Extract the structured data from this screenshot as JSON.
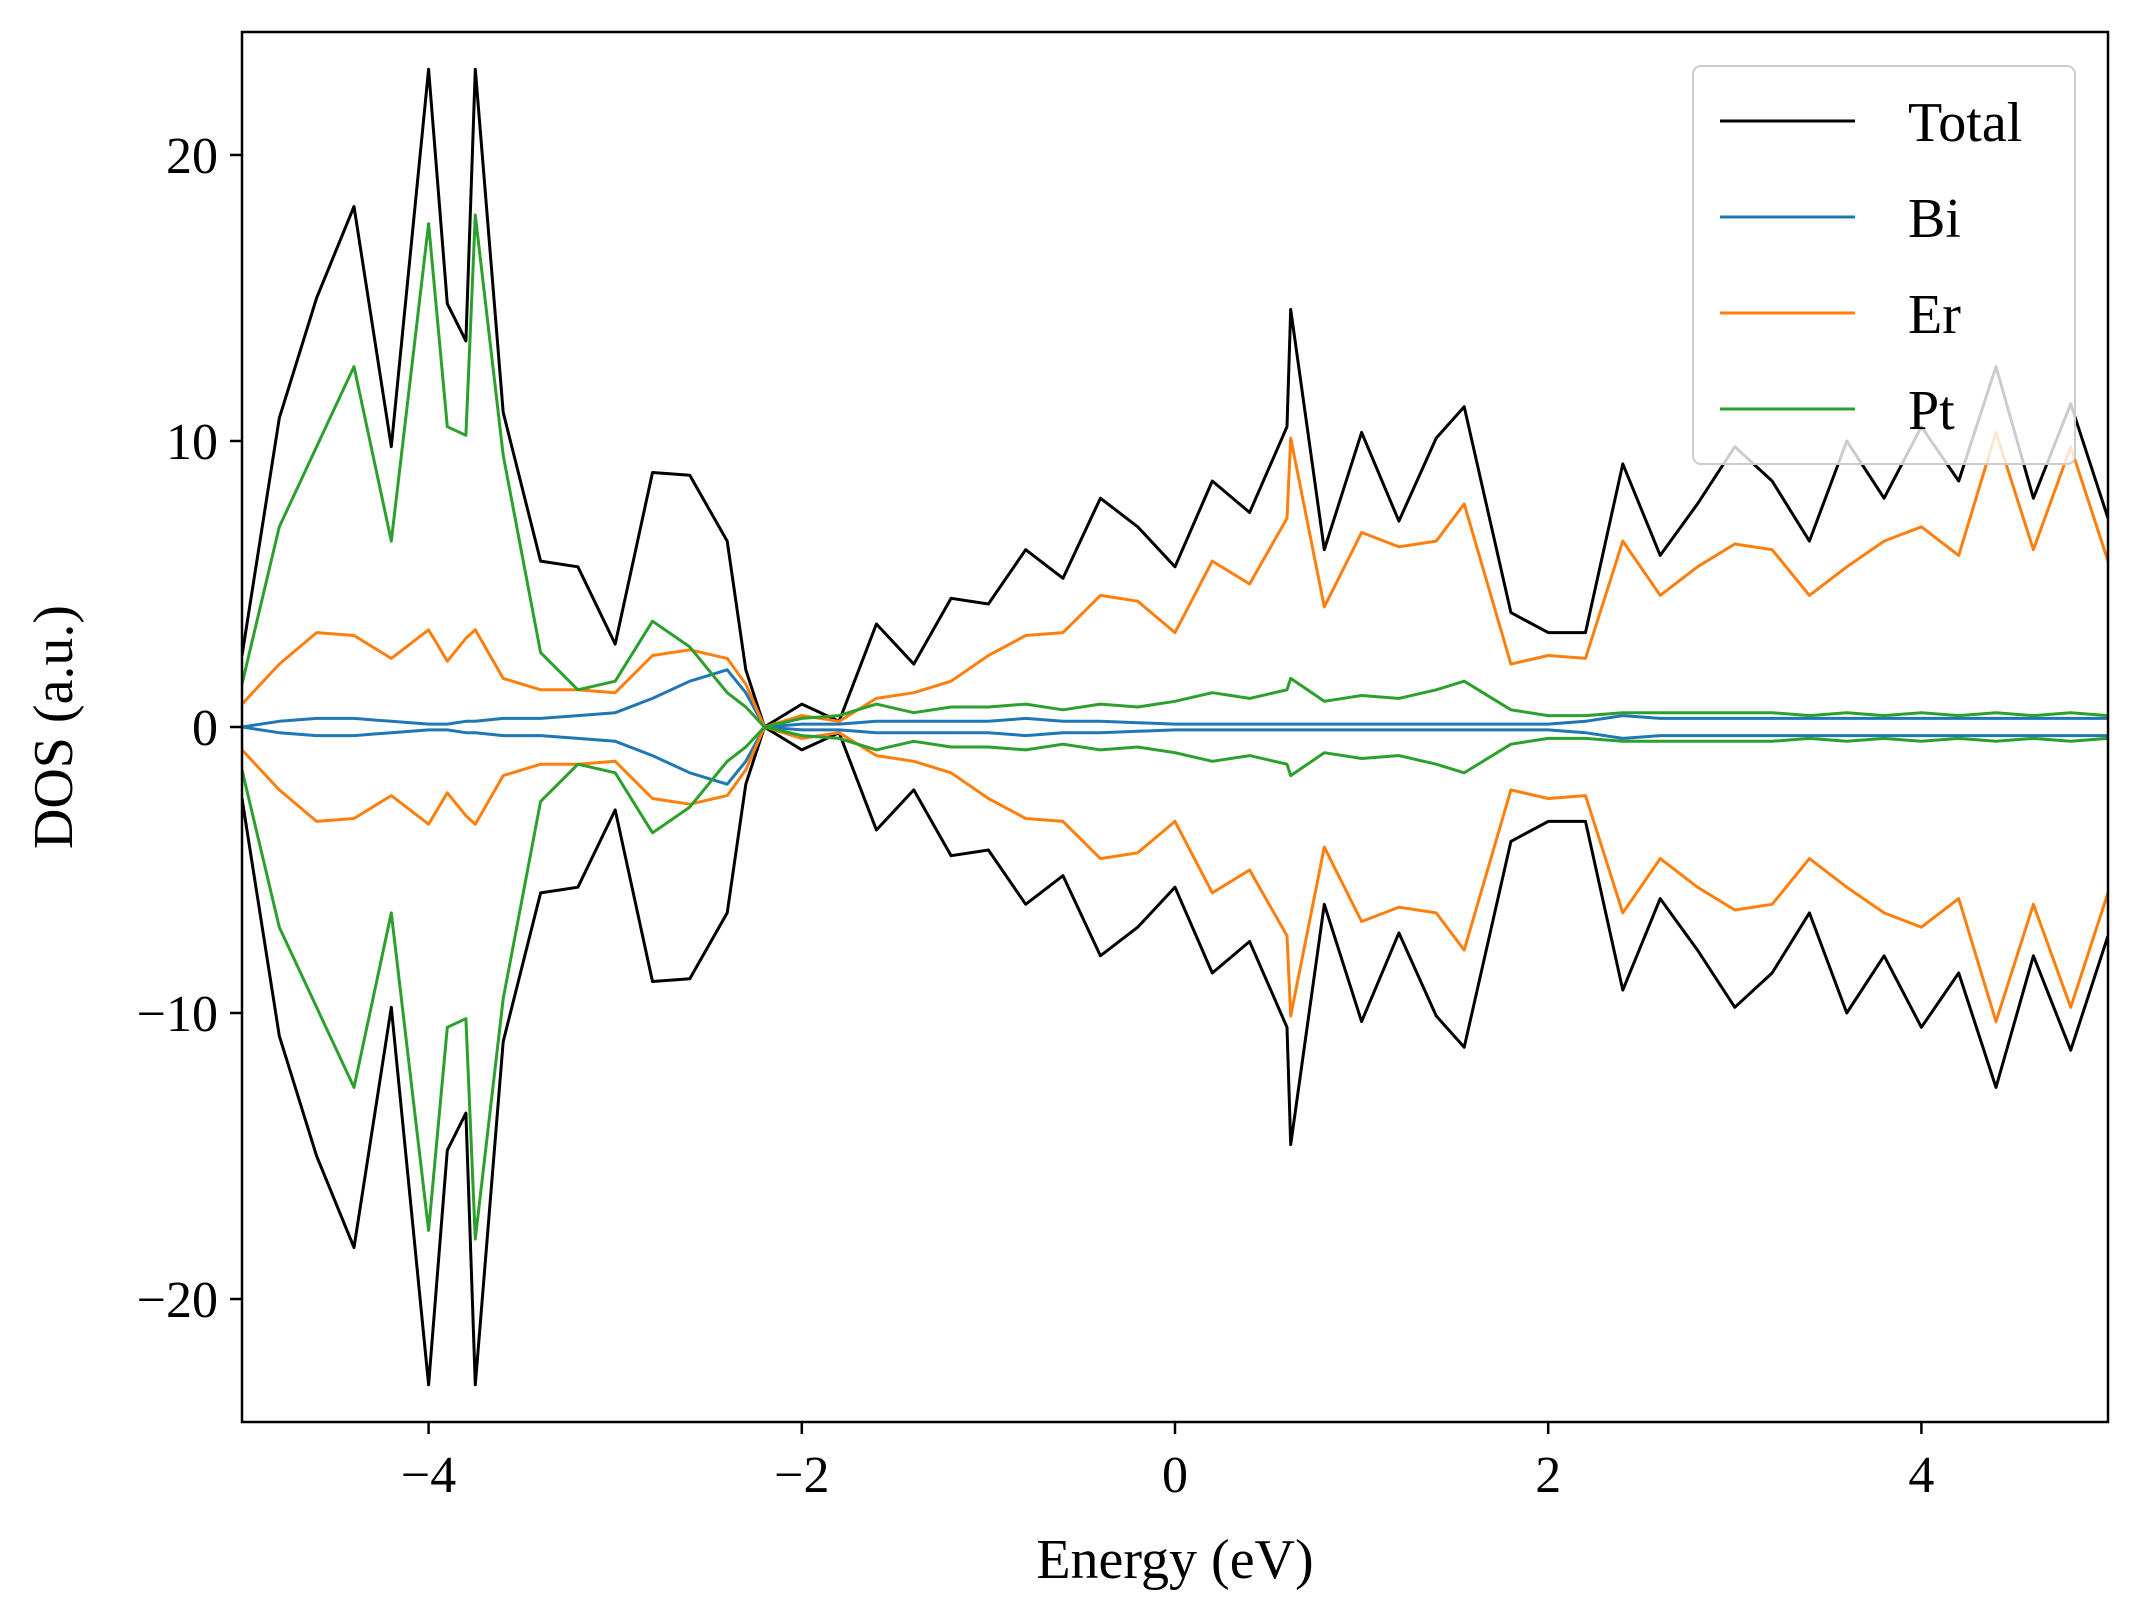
{
  "chart_data": {
    "type": "line",
    "title": "",
    "xlabel": "Energy (eV)",
    "ylabel": "DOS (a.u.)",
    "xlim": [
      -5,
      5
    ],
    "ylim": [
      -24.3,
      24.3
    ],
    "xticks": [
      -4,
      -2,
      0,
      2,
      4
    ],
    "xtick_labels": [
      "−4",
      "−2",
      "0",
      "2",
      "4"
    ],
    "yticks": [
      -20,
      -10,
      0,
      10,
      20
    ],
    "ytick_labels": [
      "−20",
      "−10",
      "0",
      "10",
      "20"
    ],
    "grid": false,
    "legend_position": "top-right",
    "mirrored": true,
    "x": [
      -5.0,
      -4.8,
      -4.6,
      -4.4,
      -4.2,
      -4.0,
      -3.9,
      -3.8,
      -3.75,
      -3.6,
      -3.4,
      -3.2,
      -3.0,
      -2.8,
      -2.6,
      -2.4,
      -2.3,
      -2.2,
      -2.0,
      -1.8,
      -1.6,
      -1.4,
      -1.2,
      -1.0,
      -0.8,
      -0.6,
      -0.4,
      -0.2,
      0.0,
      0.2,
      0.4,
      0.6,
      0.62,
      0.8,
      1.0,
      1.2,
      1.4,
      1.55,
      1.8,
      2.0,
      2.2,
      2.4,
      2.6,
      2.8,
      3.0,
      3.2,
      3.4,
      3.6,
      3.8,
      4.0,
      4.2,
      4.4,
      4.6,
      4.8,
      5.0
    ],
    "series": [
      {
        "name": "Total",
        "color": "#000000",
        "values": [
          2.5,
          10.8,
          15.0,
          18.2,
          9.8,
          23.0,
          14.8,
          13.5,
          23.0,
          11.0,
          5.8,
          5.6,
          2.9,
          8.9,
          8.8,
          6.5,
          2.0,
          0.0,
          0.8,
          0.2,
          3.6,
          2.2,
          4.5,
          4.3,
          6.2,
          5.2,
          8.0,
          7.0,
          5.6,
          8.6,
          7.5,
          10.5,
          14.6,
          6.2,
          10.3,
          7.2,
          10.1,
          11.2,
          4.0,
          3.3,
          3.3,
          9.2,
          6.0,
          7.8,
          9.8,
          8.6,
          6.5,
          10.0,
          8.0,
          10.5,
          8.6,
          12.6,
          8.0,
          11.3,
          7.3
        ]
      },
      {
        "name": "Bi",
        "color": "#1f77b4",
        "values": [
          0.0,
          0.2,
          0.3,
          0.3,
          0.2,
          0.1,
          0.1,
          0.2,
          0.2,
          0.3,
          0.3,
          0.4,
          0.5,
          1.0,
          1.6,
          2.0,
          1.2,
          0.0,
          0.1,
          0.1,
          0.2,
          0.2,
          0.2,
          0.2,
          0.3,
          0.2,
          0.2,
          0.15,
          0.1,
          0.1,
          0.1,
          0.1,
          0.1,
          0.1,
          0.1,
          0.1,
          0.1,
          0.1,
          0.1,
          0.1,
          0.2,
          0.4,
          0.3,
          0.3,
          0.3,
          0.3,
          0.3,
          0.3,
          0.3,
          0.3,
          0.3,
          0.3,
          0.3,
          0.3,
          0.3
        ]
      },
      {
        "name": "Er",
        "color": "#ff7f0e",
        "values": [
          0.8,
          2.2,
          3.3,
          3.2,
          2.4,
          3.4,
          2.3,
          3.1,
          3.4,
          1.7,
          1.3,
          1.3,
          1.2,
          2.5,
          2.7,
          2.4,
          1.5,
          0.0,
          0.4,
          0.2,
          1.0,
          1.2,
          1.6,
          2.5,
          3.2,
          3.3,
          4.6,
          4.4,
          3.3,
          5.8,
          5.0,
          7.3,
          10.1,
          4.2,
          6.8,
          6.3,
          6.5,
          7.8,
          2.2,
          2.5,
          2.4,
          6.5,
          4.6,
          5.6,
          6.4,
          6.2,
          4.6,
          5.6,
          6.5,
          7.0,
          6.0,
          10.3,
          6.2,
          9.8,
          5.8
        ]
      },
      {
        "name": "Pt",
        "color": "#2ca02c",
        "values": [
          1.5,
          7.0,
          9.8,
          12.6,
          6.5,
          17.6,
          10.5,
          10.2,
          17.9,
          9.5,
          2.6,
          1.3,
          1.6,
          3.7,
          2.8,
          1.2,
          0.7,
          0.0,
          0.3,
          0.4,
          0.8,
          0.5,
          0.7,
          0.7,
          0.8,
          0.6,
          0.8,
          0.7,
          0.9,
          1.2,
          1.0,
          1.3,
          1.7,
          0.9,
          1.1,
          1.0,
          1.3,
          1.6,
          0.6,
          0.4,
          0.4,
          0.5,
          0.5,
          0.5,
          0.5,
          0.5,
          0.4,
          0.5,
          0.4,
          0.5,
          0.4,
          0.5,
          0.4,
          0.5,
          0.4
        ]
      }
    ]
  }
}
